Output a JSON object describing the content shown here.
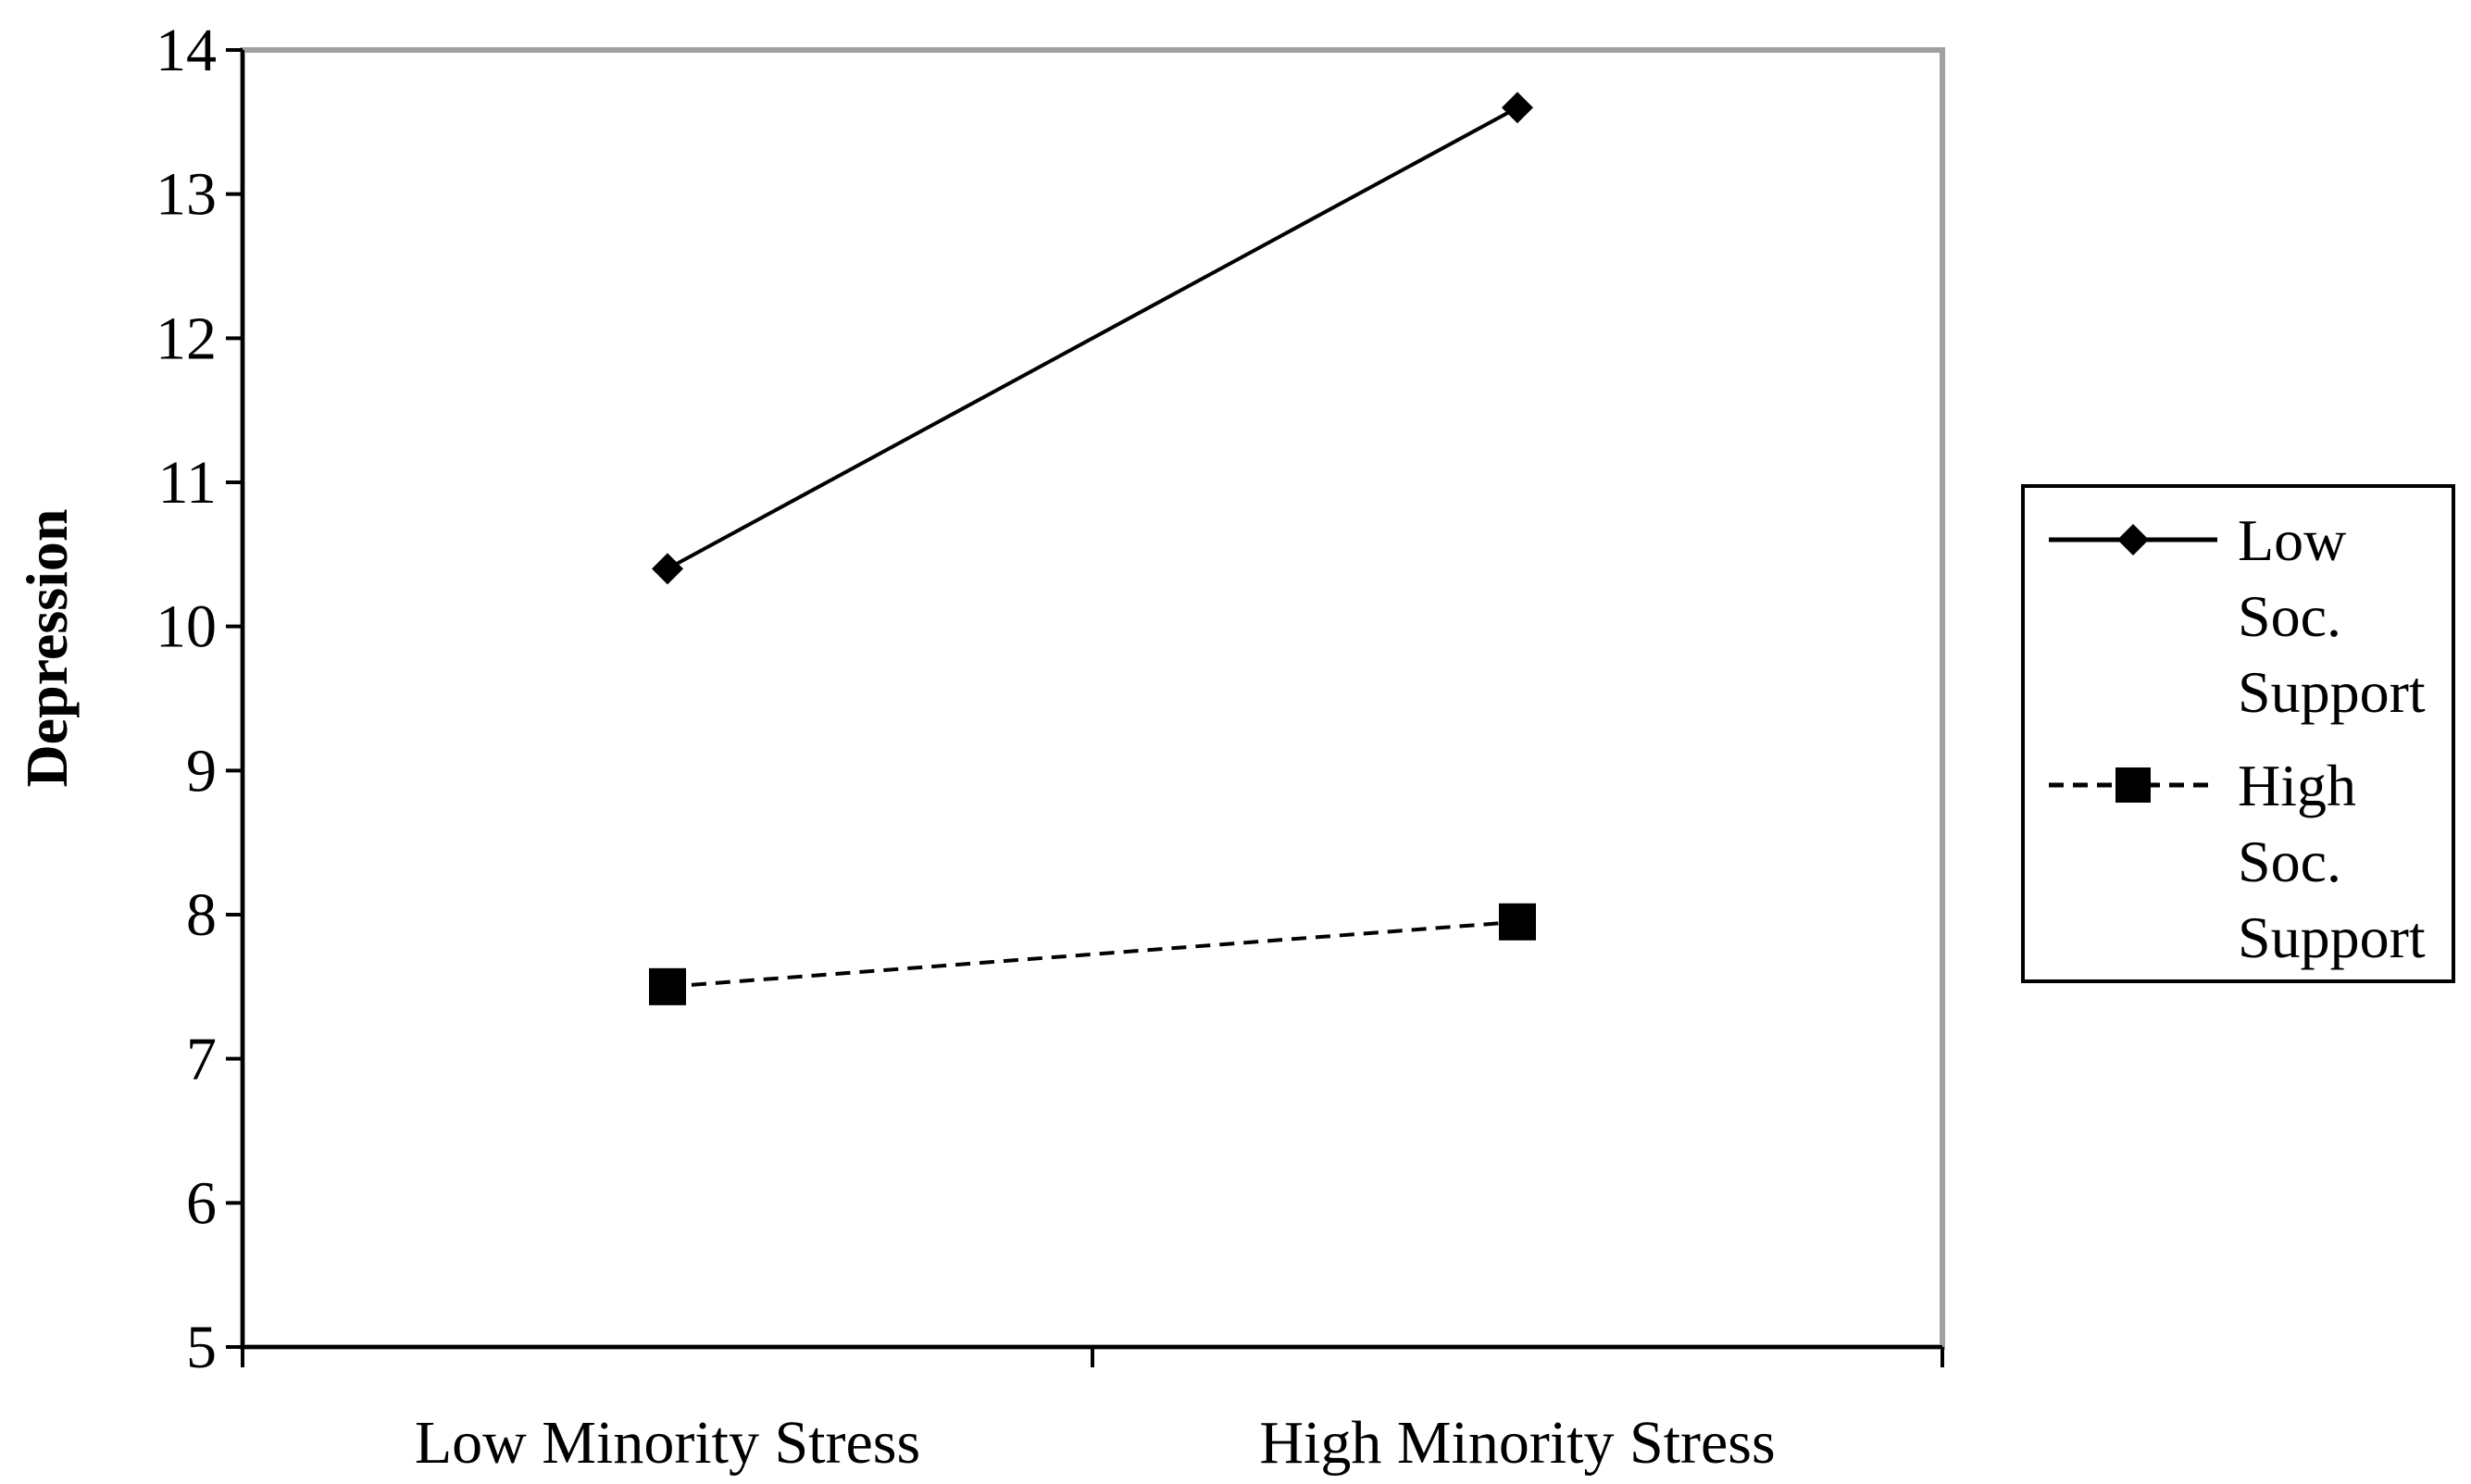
{
  "chart_data": {
    "type": "line",
    "categories": [
      "Low Minority Stress",
      "High Minority Stress"
    ],
    "series": [
      {
        "name": "Low Soc. Support",
        "legend_lines": [
          "Low",
          "Soc.",
          "Support"
        ],
        "values": [
          10.4,
          13.6
        ],
        "marker": "diamond",
        "line_style": "solid",
        "color": "#000000"
      },
      {
        "name": "High Soc. Support",
        "legend_lines": [
          "High",
          "Soc.",
          "Support"
        ],
        "values": [
          7.5,
          7.95
        ],
        "marker": "square",
        "line_style": "dashed",
        "color": "#000000"
      }
    ],
    "title": "",
    "xlabel": "",
    "ylabel": "Depression",
    "ylim": [
      5,
      14
    ],
    "yticks": [
      "5",
      "6",
      "7",
      "8",
      "9",
      "10",
      "11",
      "12",
      "13",
      "14"
    ],
    "grid": false,
    "legend_position": "right",
    "plot_border_color": "#a0a0a0"
  }
}
